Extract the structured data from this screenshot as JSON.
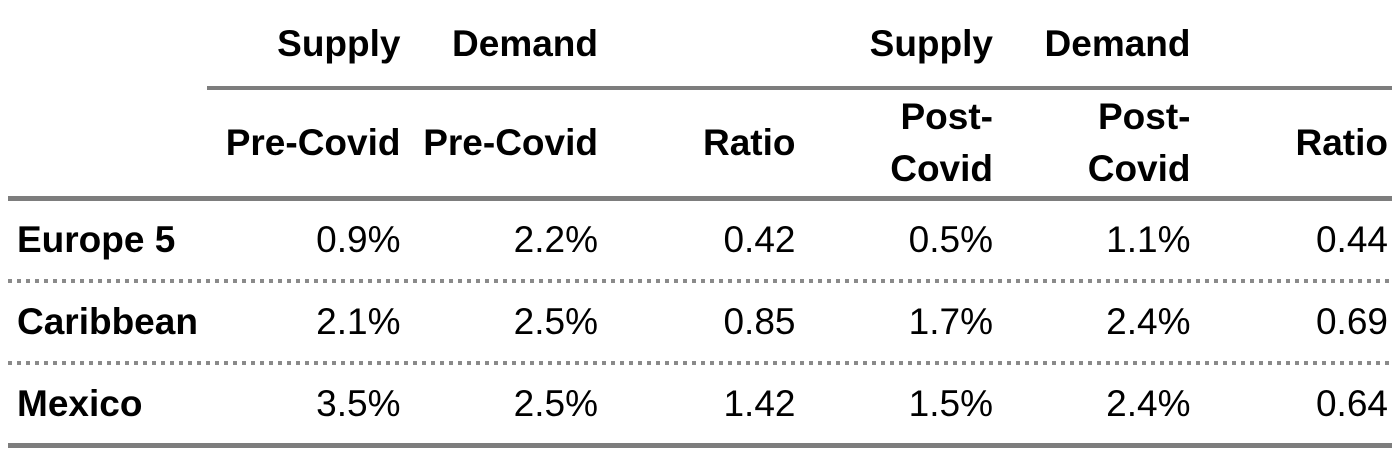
{
  "table": {
    "group_headers": [
      "Supply",
      "Demand",
      "Supply",
      "Demand"
    ],
    "col_headers": [
      "Pre-Covid",
      "Pre-Covid",
      "Ratio",
      "Post-\nCovid",
      "Post-\nCovid",
      "Ratio"
    ],
    "rows": [
      {
        "label": "Europe 5",
        "values": [
          "0.9%",
          "2.2%",
          "0.42",
          "0.5%",
          "1.1%",
          "0.44"
        ]
      },
      {
        "label": "Caribbean",
        "values": [
          "2.1%",
          "2.5%",
          "0.85",
          "1.7%",
          "2.4%",
          "0.69"
        ]
      },
      {
        "label": "Mexico",
        "values": [
          "3.5%",
          "2.5%",
          "1.42",
          "1.5%",
          "2.4%",
          "0.64"
        ]
      }
    ],
    "colors": {
      "text": "#000000",
      "rule_line": "#7d7d7d",
      "dotted_line": "#8a8a8a",
      "background": "#ffffff"
    }
  },
  "chart_data": {
    "type": "table",
    "title": "",
    "column_group_labels": [
      "Supply",
      "Demand",
      "",
      "Supply",
      "Demand",
      ""
    ],
    "columns": [
      "Supply Pre-Covid",
      "Demand Pre-Covid",
      "Ratio",
      "Supply Post-Covid",
      "Demand Post-Covid",
      "Ratio"
    ],
    "row_labels": [
      "Europe 5",
      "Caribbean",
      "Mexico"
    ],
    "cells": [
      [
        "0.9%",
        "2.2%",
        "0.42",
        "0.5%",
        "1.1%",
        "0.44"
      ],
      [
        "2.1%",
        "2.5%",
        "0.85",
        "1.7%",
        "2.4%",
        "0.69"
      ],
      [
        "3.5%",
        "2.5%",
        "1.42",
        "1.5%",
        "2.4%",
        "0.64"
      ]
    ]
  }
}
